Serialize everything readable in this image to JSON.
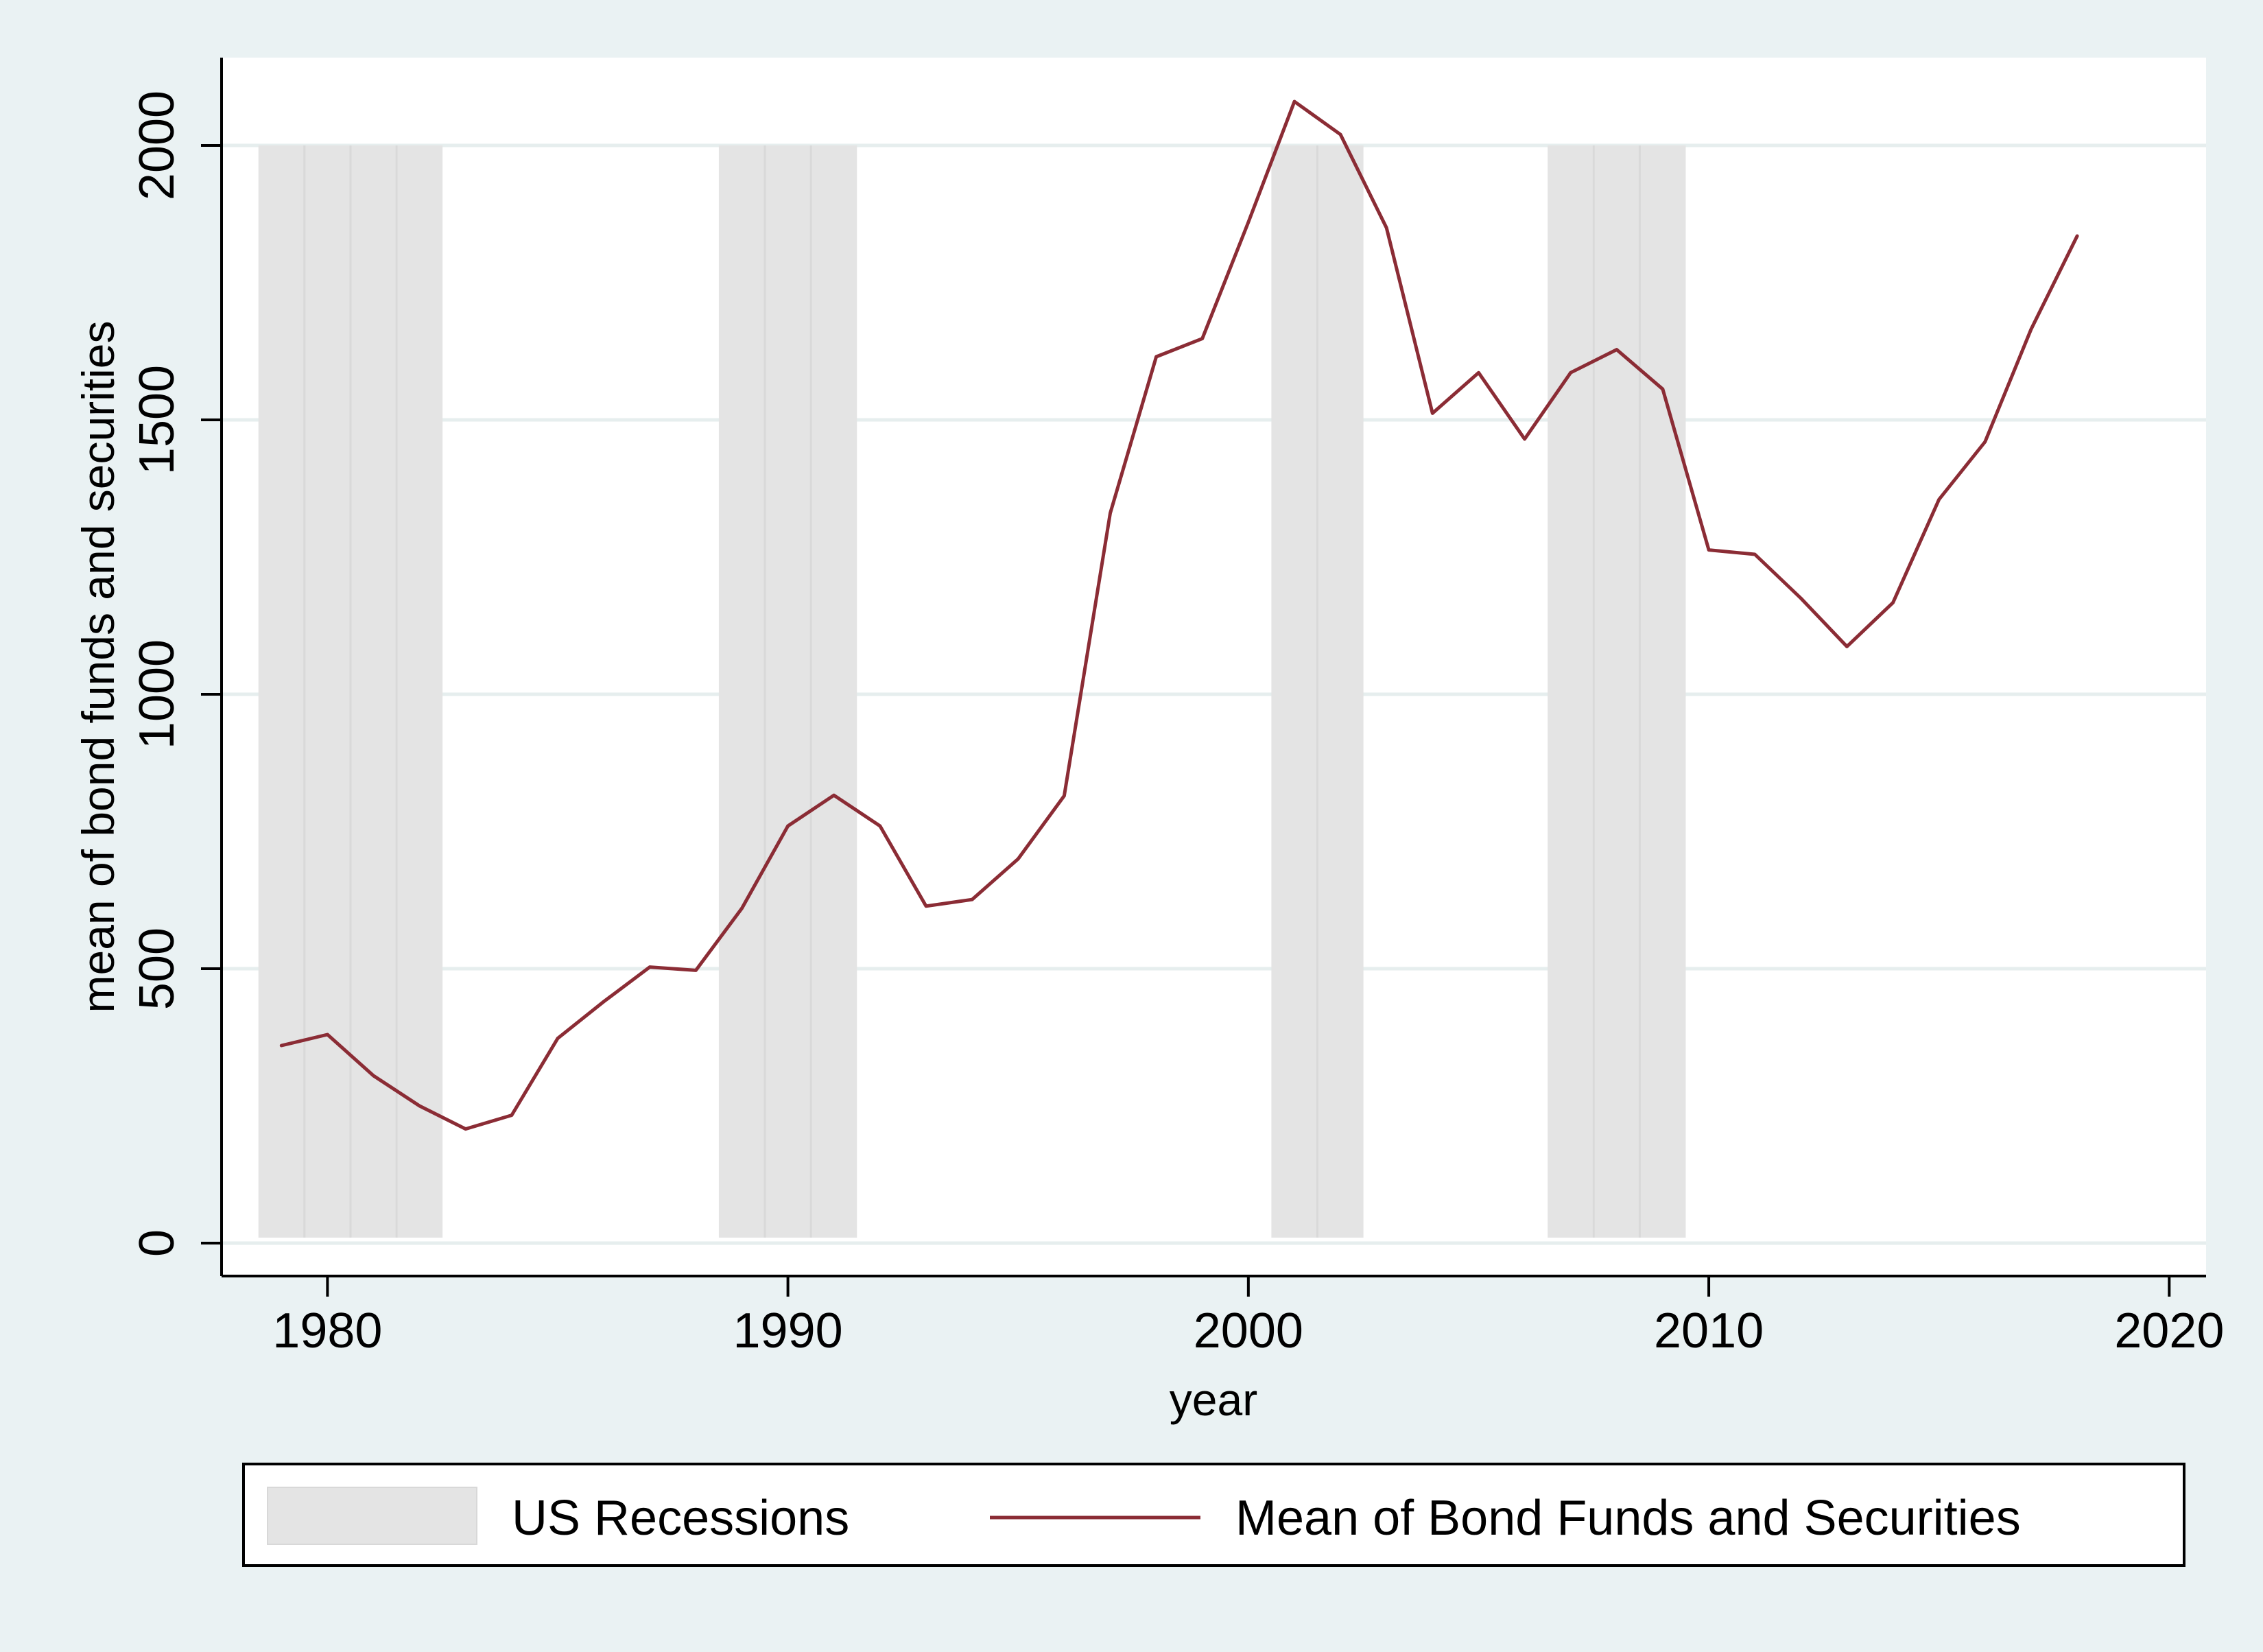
{
  "chart_data": {
    "type": "line",
    "title": "",
    "xlabel": "year",
    "ylabel": "mean of bond funds and securities",
    "xlim": [
      1977.7,
      2020.8
    ],
    "ylim": [
      -60,
      2160
    ],
    "x_ticks": [
      1980,
      1990,
      2000,
      2010,
      2020
    ],
    "y_ticks": [
      0,
      500,
      1000,
      1500,
      2000
    ],
    "grid": true,
    "legend": {
      "position": "bottom",
      "entries": [
        "US Recessions",
        "Mean of Bond Funds and Securities"
      ]
    },
    "recessions": {
      "name": "US Recessions",
      "color": "#e4e4e4",
      "y_range": [
        10,
        2000
      ],
      "bands": [
        {
          "start": 1978.5,
          "end": 1982.5
        },
        {
          "start": 1988.5,
          "end": 1991.5
        },
        {
          "start": 2000.5,
          "end": 2002.5
        },
        {
          "start": 2006.5,
          "end": 2009.5
        }
      ],
      "year_dividers": [
        1979.5,
        1980.5,
        1981.5,
        1989.5,
        1990.5,
        2001.5,
        2007.5,
        2008.5
      ]
    },
    "series": [
      {
        "name": "Mean of Bond Funds and Securities",
        "color": "#8b2c35",
        "x": [
          1979,
          1980,
          1981,
          1982,
          1983,
          1984,
          1985,
          1986,
          1987,
          1988,
          1989,
          1990,
          1991,
          1992,
          1993,
          1994,
          1995,
          1996,
          1997,
          1998,
          1999,
          2000,
          2001,
          2002,
          2003,
          2004,
          2005,
          2006,
          2007,
          2008,
          2009,
          2010,
          2011,
          2012,
          2013,
          2014,
          2015,
          2016,
          2017,
          2018
        ],
        "values": [
          360,
          380,
          305,
          250,
          208,
          233,
          373,
          440,
          503,
          497,
          610,
          760,
          816,
          760,
          614,
          626,
          700,
          815,
          1330,
          1615,
          1648,
          1860,
          2080,
          2020,
          1850,
          1512,
          1586,
          1465,
          1586,
          1628,
          1556,
          1263,
          1255,
          1175,
          1087,
          1167,
          1355,
          1460,
          1665,
          1835
        ]
      }
    ]
  },
  "colors": {
    "background": "#eaf2f3",
    "plot_background": "#ffffff",
    "grid": "#e6eeee",
    "line": "#8b2c35",
    "recession_fill": "#e4e4e4"
  }
}
